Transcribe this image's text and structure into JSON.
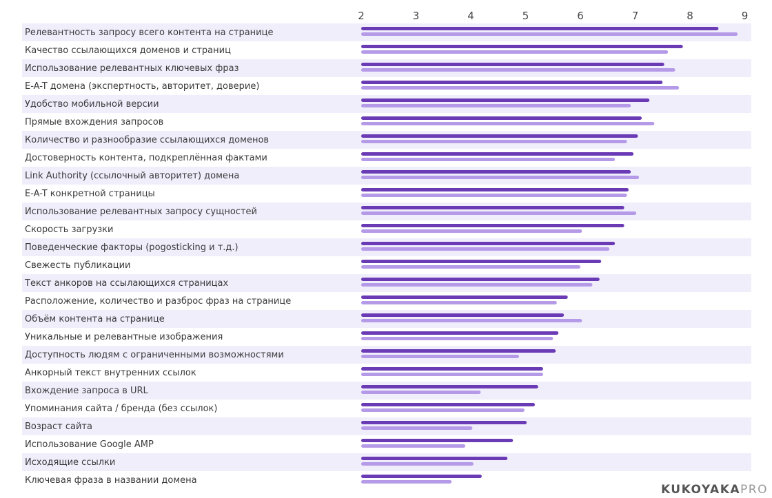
{
  "chart_data": {
    "type": "bar",
    "orientation": "horizontal",
    "x_ticks": [
      2,
      3,
      4,
      5,
      6,
      7,
      8,
      9
    ],
    "xlim": [
      2,
      9.2
    ],
    "categories": [
      "Релевантность запросу всего контента на странице",
      "Качество ссылающихся доменов и страниц",
      "Использование релевантных ключевых фраз",
      "E-A-T домена (экспертность, авторитет, доверие)",
      "Удобство мобильной версии",
      "Прямые вхождения запросов",
      "Количество и разнообразие ссылающихся доменов",
      "Достоверность контента, подкреплённая фактами",
      "Link Authority (ссылочный авторитет) домена",
      "E-A-T конкретной страницы",
      "Использование релевантных запросу сущностей",
      "Скорость загрузки",
      "Поведенческие факторы (pogosticking и т.д.)",
      "Свежесть публикации",
      "Текст анкоров на ссылающихся страницах",
      "Расположение, количество и разброс фраз на странице",
      "Объём контента на странице",
      "Уникальные и релевантные изображения",
      "Доступность людям с ограниченными возможностями",
      "Анкорный текст внутренних ссылок",
      "Вхождение запроса в URL",
      "Упоминания сайта / бренда (без ссылок)",
      "Возраст сайта",
      "Использование Google AMP",
      "Исходящие ссылки",
      "Ключевая фраза в названии домена"
    ],
    "series": [
      {
        "color": "#6a3bb5",
        "values": [
          8.52,
          7.87,
          7.53,
          7.5,
          7.26,
          7.12,
          7.05,
          6.97,
          6.92,
          6.88,
          6.8,
          6.8,
          6.63,
          6.38,
          6.35,
          5.77,
          5.7,
          5.6,
          5.55,
          5.32,
          5.23,
          5.17,
          5.02,
          4.77,
          4.67,
          4.2
        ]
      },
      {
        "color": "#b59ae8",
        "values": [
          8.87,
          7.6,
          7.73,
          7.8,
          6.92,
          7.35,
          6.85,
          6.63,
          7.07,
          6.85,
          7.02,
          6.03,
          6.53,
          6.0,
          6.22,
          5.57,
          6.03,
          5.5,
          4.88,
          5.32,
          4.18,
          4.98,
          4.03,
          3.9,
          4.05,
          3.65
        ]
      }
    ],
    "stripe_color": "#f1eefc",
    "grid": false,
    "legend": "none"
  },
  "brand": {
    "main": "KUKOYAKA",
    "suffix": "PRO"
  }
}
